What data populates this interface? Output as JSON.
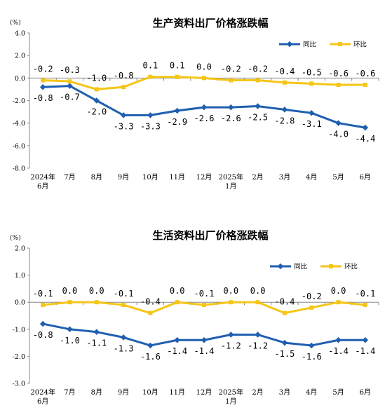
{
  "chart_data": [
    {
      "type": "line",
      "title": "生产资料出厂价格涨跌幅",
      "unit_label": "(%)",
      "y_ticks": [
        "4.0",
        "2.0",
        "0.0",
        "-2.0",
        "-4.0",
        "-6.0",
        "-8.0"
      ],
      "ylim": [
        -8,
        4
      ],
      "categories": [
        "2024年|6月",
        "7月",
        "8月",
        "9月",
        "10月",
        "11月",
        "12月",
        "2025年|1月",
        "2月",
        "3月",
        "4月",
        "5月",
        "6月"
      ],
      "series": [
        {
          "name": "同比",
          "color": "#1f5fb0",
          "values": [
            -0.8,
            -0.7,
            -2.0,
            -3.3,
            -3.3,
            -2.9,
            -2.6,
            -2.6,
            -2.5,
            -2.8,
            -3.1,
            -4.0,
            -4.4
          ],
          "labels": [
            "-0.8",
            "-0.7",
            "-2.0",
            "-3.3",
            "-3.3",
            "-2.9",
            "-2.6",
            "-2.6",
            "-2.5",
            "-2.8",
            "-3.1",
            "-4.0",
            "-4.4"
          ]
        },
        {
          "name": "环比",
          "color": "#f5c518",
          "values": [
            -0.2,
            -0.3,
            -1.0,
            -0.8,
            0.1,
            0.1,
            0.0,
            -0.2,
            -0.2,
            -0.4,
            -0.5,
            -0.6,
            -0.6
          ],
          "labels": [
            "-0.2",
            "-0.3",
            "-1.0",
            "-0.8",
            "0.1",
            "0.1",
            "0.0",
            "-0.2",
            "-0.2",
            "-0.4",
            "-0.5",
            "-0.6",
            "-0.6"
          ]
        }
      ],
      "legend_position": "top-right",
      "grid": false
    },
    {
      "type": "line",
      "title": "生活资料出厂价格涨跌幅",
      "unit_label": "(%)",
      "y_ticks": [
        "2.0",
        "1.0",
        "0.0",
        "-1.0",
        "-2.0",
        "-3.0"
      ],
      "ylim": [
        -3,
        2
      ],
      "categories": [
        "2024年|6月",
        "7月",
        "8月",
        "9月",
        "10月",
        "11月",
        "12月",
        "2025年|1月",
        "2月",
        "3月",
        "4月",
        "5月",
        "6月"
      ],
      "series": [
        {
          "name": "同比",
          "color": "#1f5fb0",
          "values": [
            -0.8,
            -1.0,
            -1.1,
            -1.3,
            -1.6,
            -1.4,
            -1.4,
            -1.2,
            -1.2,
            -1.5,
            -1.6,
            -1.4,
            -1.4
          ],
          "labels": [
            "-0.8",
            "-1.0",
            "-1.1",
            "-1.3",
            "-1.6",
            "-1.4",
            "-1.4",
            "-1.2",
            "-1.2",
            "-1.5",
            "-1.6",
            "-1.4",
            "-1.4"
          ]
        },
        {
          "name": "环比",
          "color": "#f5c518",
          "values": [
            -0.1,
            0.0,
            0.0,
            -0.1,
            -0.4,
            0.0,
            -0.1,
            0.0,
            0.0,
            -0.4,
            -0.2,
            0.0,
            -0.1
          ],
          "labels": [
            "-0.1",
            "0.0",
            "0.0",
            "-0.1",
            "-0.4",
            "0.0",
            "-0.1",
            "0.0",
            "0.0",
            "-0.4",
            "-0.2",
            "0.0",
            "-0.1"
          ]
        }
      ],
      "legend_position": "top-right",
      "grid": false
    }
  ]
}
